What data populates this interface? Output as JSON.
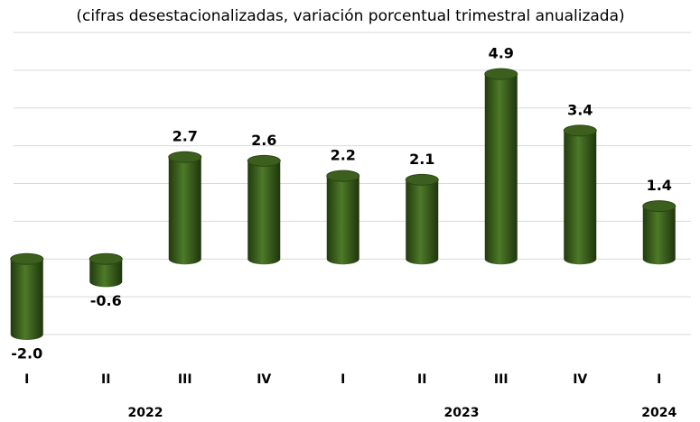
{
  "chart_data": {
    "type": "bar",
    "title": "(cifras desestacionalizadas, variación porcentual trimestral anualizada)",
    "categories": [
      "I",
      "II",
      "III",
      "IV",
      "I",
      "II",
      "III",
      "IV",
      "I"
    ],
    "years": [
      "2022",
      "2022",
      "2022",
      "2022",
      "2023",
      "2023",
      "2023",
      "2023",
      "2024"
    ],
    "values": [
      -2.0,
      -0.6,
      2.7,
      2.6,
      2.2,
      2.1,
      4.9,
      3.4,
      1.4
    ],
    "value_labels": [
      "-2.0",
      "-0.6",
      "2.7",
      "2.6",
      "2.2",
      "2.1",
      "4.9",
      "3.4",
      "1.4"
    ],
    "color": "#3d5f1e",
    "ylim": [
      -2,
      6
    ],
    "yticks": [
      -2,
      -1,
      0,
      1,
      2,
      3,
      4,
      5,
      6
    ],
    "grid": true
  }
}
